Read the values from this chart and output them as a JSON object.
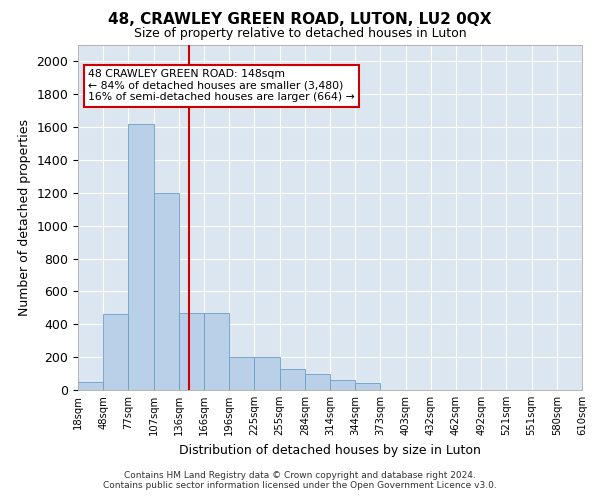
{
  "title": "48, CRAWLEY GREEN ROAD, LUTON, LU2 0QX",
  "subtitle": "Size of property relative to detached houses in Luton",
  "xlabel": "Distribution of detached houses by size in Luton",
  "ylabel": "Number of detached properties",
  "bar_color": "#bad0e8",
  "bar_edge_color": "#6a9fc8",
  "background_color": "#dce6f0",
  "grid_color": "#ffffff",
  "annotation_box_color": "#cc0000",
  "vline_color": "#cc0000",
  "vline_x_index": 4.4,
  "annotation_text": "48 CRAWLEY GREEN ROAD: 148sqm\n← 84% of detached houses are smaller (3,480)\n16% of semi-detached houses are larger (664) →",
  "bin_edges": [
    18,
    48,
    77,
    107,
    136,
    166,
    196,
    225,
    255,
    284,
    314,
    344,
    373,
    403,
    432,
    462,
    492,
    521,
    551,
    580,
    610
  ],
  "bin_labels": [
    "18sqm",
    "48sqm",
    "77sqm",
    "107sqm",
    "136sqm",
    "166sqm",
    "196sqm",
    "225sqm",
    "255sqm",
    "284sqm",
    "314sqm",
    "344sqm",
    "373sqm",
    "403sqm",
    "432sqm",
    "462sqm",
    "492sqm",
    "521sqm",
    "551sqm",
    "580sqm",
    "610sqm"
  ],
  "counts": [
    50,
    460,
    1620,
    1200,
    470,
    470,
    200,
    200,
    125,
    100,
    60,
    40,
    0,
    0,
    0,
    0,
    0,
    0,
    0,
    0
  ],
  "ylim": [
    0,
    2100
  ],
  "yticks": [
    0,
    200,
    400,
    600,
    800,
    1000,
    1200,
    1400,
    1600,
    1800,
    2000
  ],
  "footer_line1": "Contains HM Land Registry data © Crown copyright and database right 2024.",
  "footer_line2": "Contains public sector information licensed under the Open Government Licence v3.0."
}
